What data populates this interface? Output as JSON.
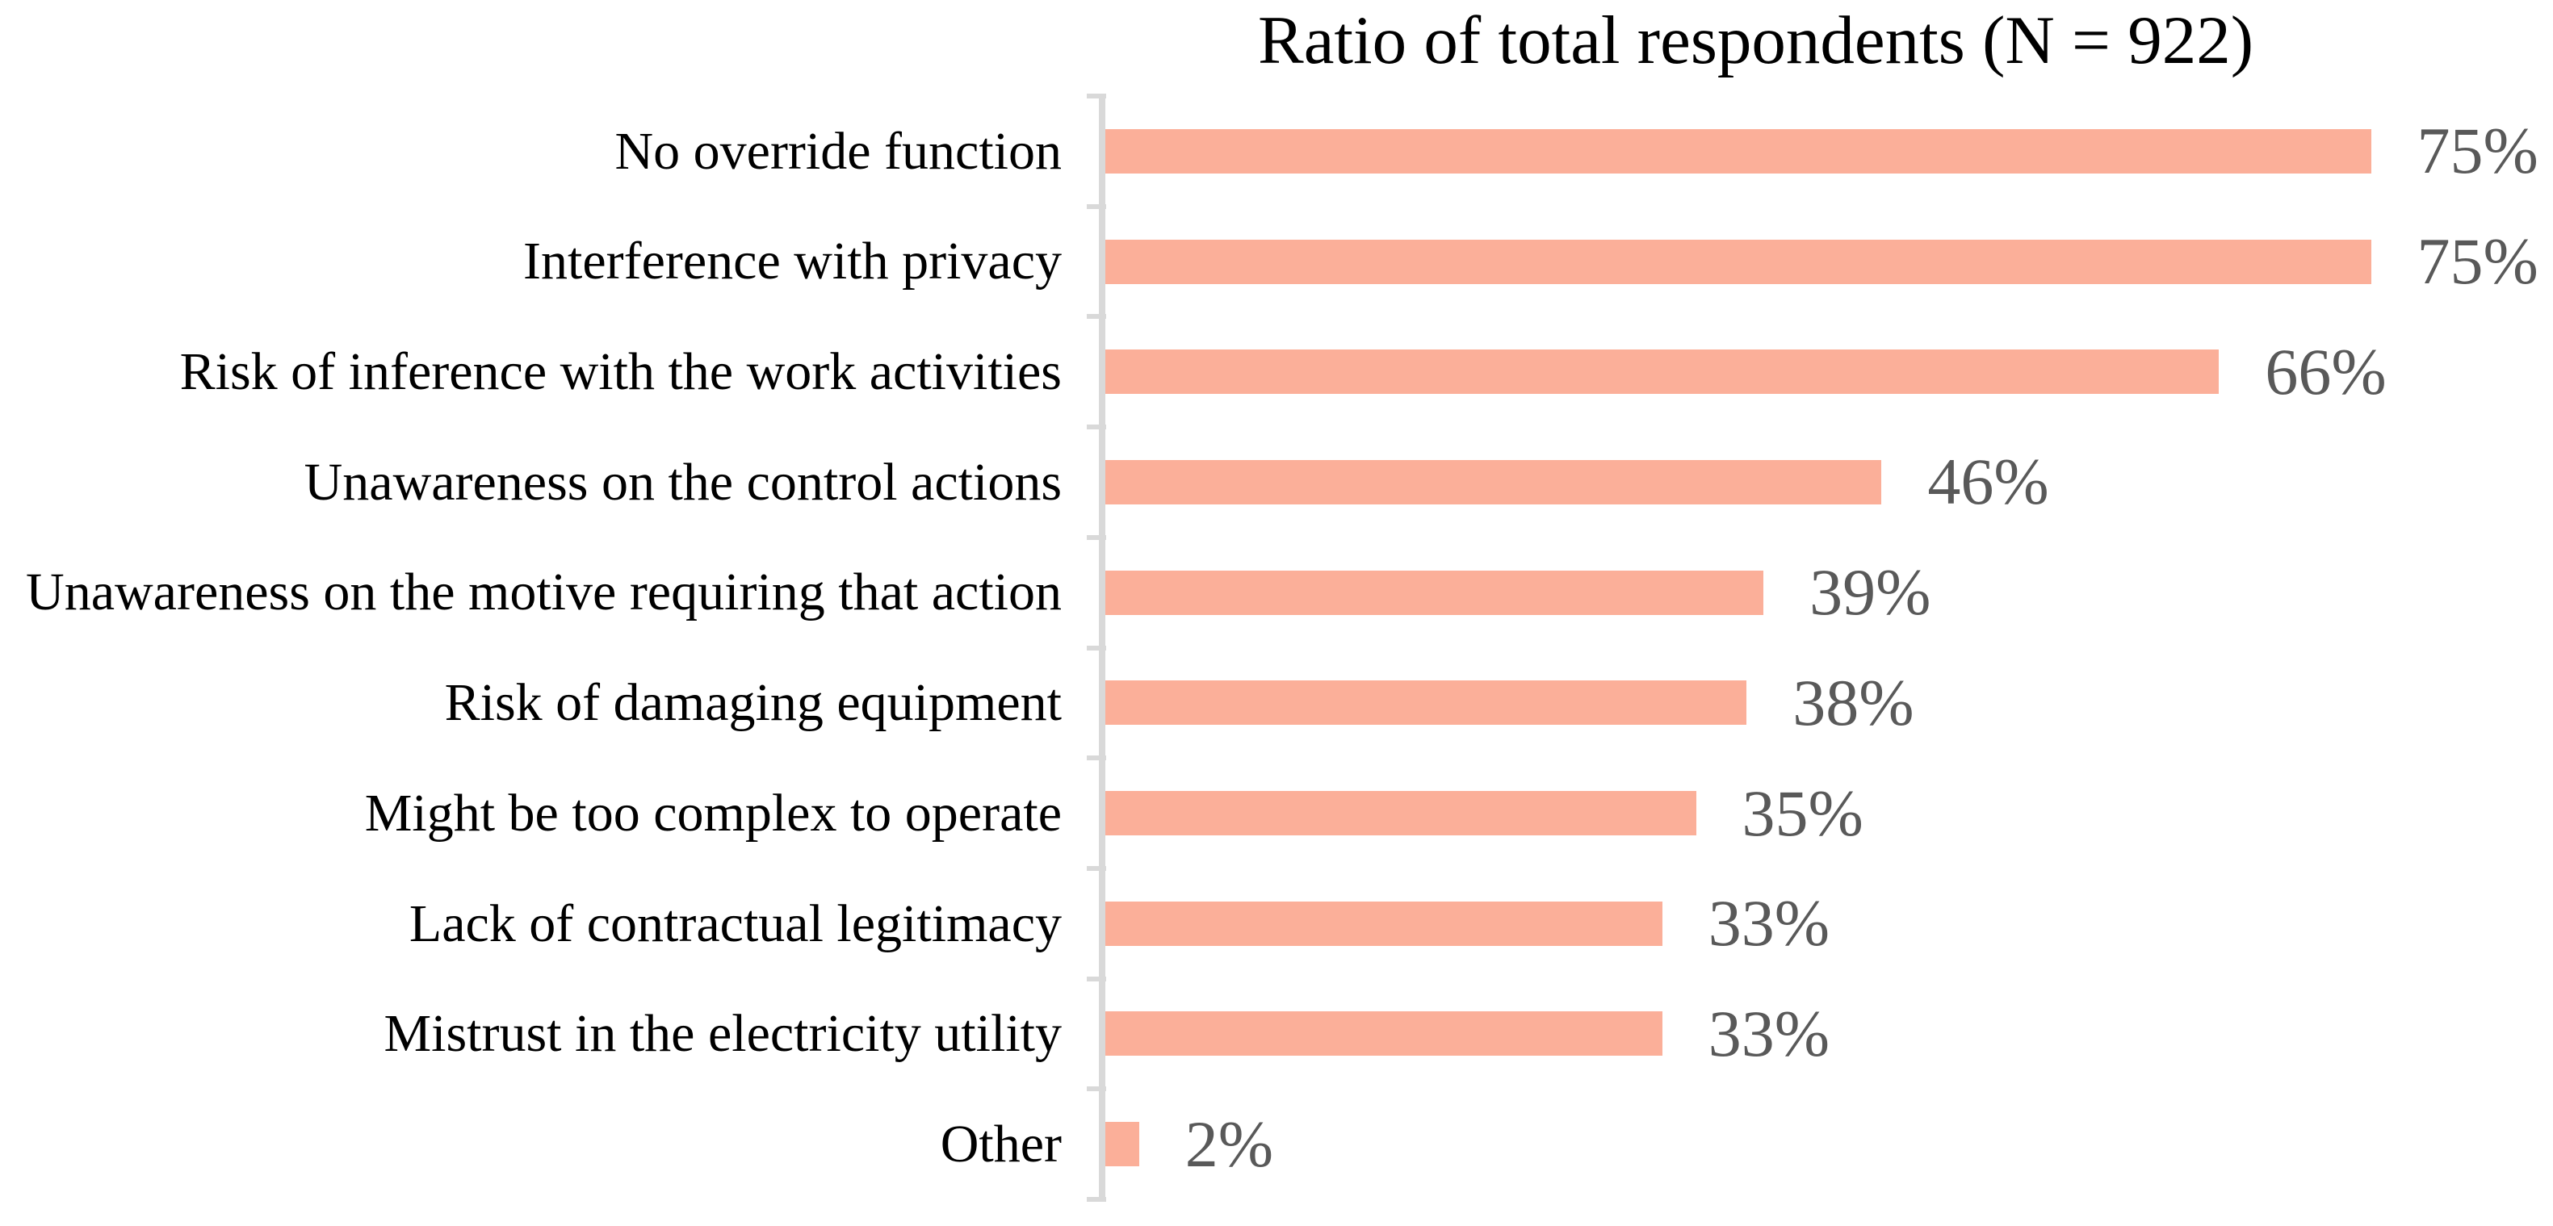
{
  "chart_data": {
    "type": "bar",
    "orientation": "horizontal",
    "title": "Ratio of total respondents (N = 922)",
    "categories": [
      "No override function",
      "Interference with privacy",
      "Risk of inference with the work activities",
      "Unawareness on the control actions",
      "Unawareness on the motive requiring that action",
      "Risk of damaging equipment",
      "Might be too complex to operate",
      "Lack of contractual legitimacy",
      "Mistrust in the electricity utility",
      "Other"
    ],
    "values": [
      75,
      75,
      66,
      46,
      39,
      38,
      35,
      33,
      33,
      2
    ],
    "value_labels": [
      "75%",
      "75%",
      "66%",
      "46%",
      "39%",
      "38%",
      "35%",
      "33%",
      "33%",
      "2%"
    ],
    "unit": "%",
    "xlim": [
      0,
      86
    ],
    "grid": false,
    "legend": false,
    "ylabel": "",
    "xlabel": "",
    "colors": {
      "bar": "#FBAF99",
      "value_label": "#595959",
      "category_label": "#000000",
      "axis_line": "#D9D9D9",
      "title": "#000000",
      "background": "#FFFFFF"
    }
  }
}
